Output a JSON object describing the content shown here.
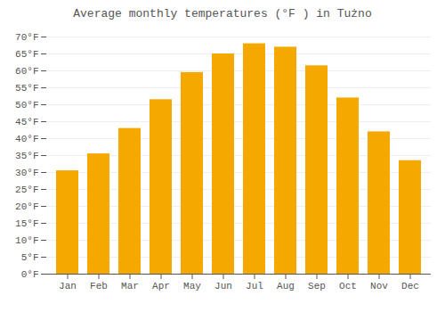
{
  "chart_data": {
    "type": "bar",
    "title": "Average monthly temperatures (°F ) in Tużno",
    "categories": [
      "Jan",
      "Feb",
      "Mar",
      "Apr",
      "May",
      "Jun",
      "Jul",
      "Aug",
      "Sep",
      "Oct",
      "Nov",
      "Dec"
    ],
    "values": [
      30.5,
      35.5,
      43.0,
      51.5,
      59.5,
      65.0,
      68.0,
      67.0,
      61.5,
      52.0,
      42.0,
      33.5
    ],
    "color": "#F5A800",
    "ylim": [
      0,
      70
    ],
    "yticks": [
      {
        "value": 0,
        "label": "0°F"
      },
      {
        "value": 5,
        "label": "5°F"
      },
      {
        "value": 10,
        "label": "10°F"
      },
      {
        "value": 15,
        "label": "15°F"
      },
      {
        "value": 20,
        "label": "20°F"
      },
      {
        "value": 25,
        "label": "25°F"
      },
      {
        "value": 30,
        "label": "30°F"
      },
      {
        "value": 35,
        "label": "35°F"
      },
      {
        "value": 40,
        "label": "40°F"
      },
      {
        "value": 45,
        "label": "45°F"
      },
      {
        "value": 50,
        "label": "50°F"
      },
      {
        "value": 55,
        "label": "55°F"
      },
      {
        "value": 60,
        "label": "60°F"
      },
      {
        "value": 65,
        "label": "65°F"
      },
      {
        "value": 70,
        "label": "70°F"
      }
    ],
    "grid": true
  }
}
